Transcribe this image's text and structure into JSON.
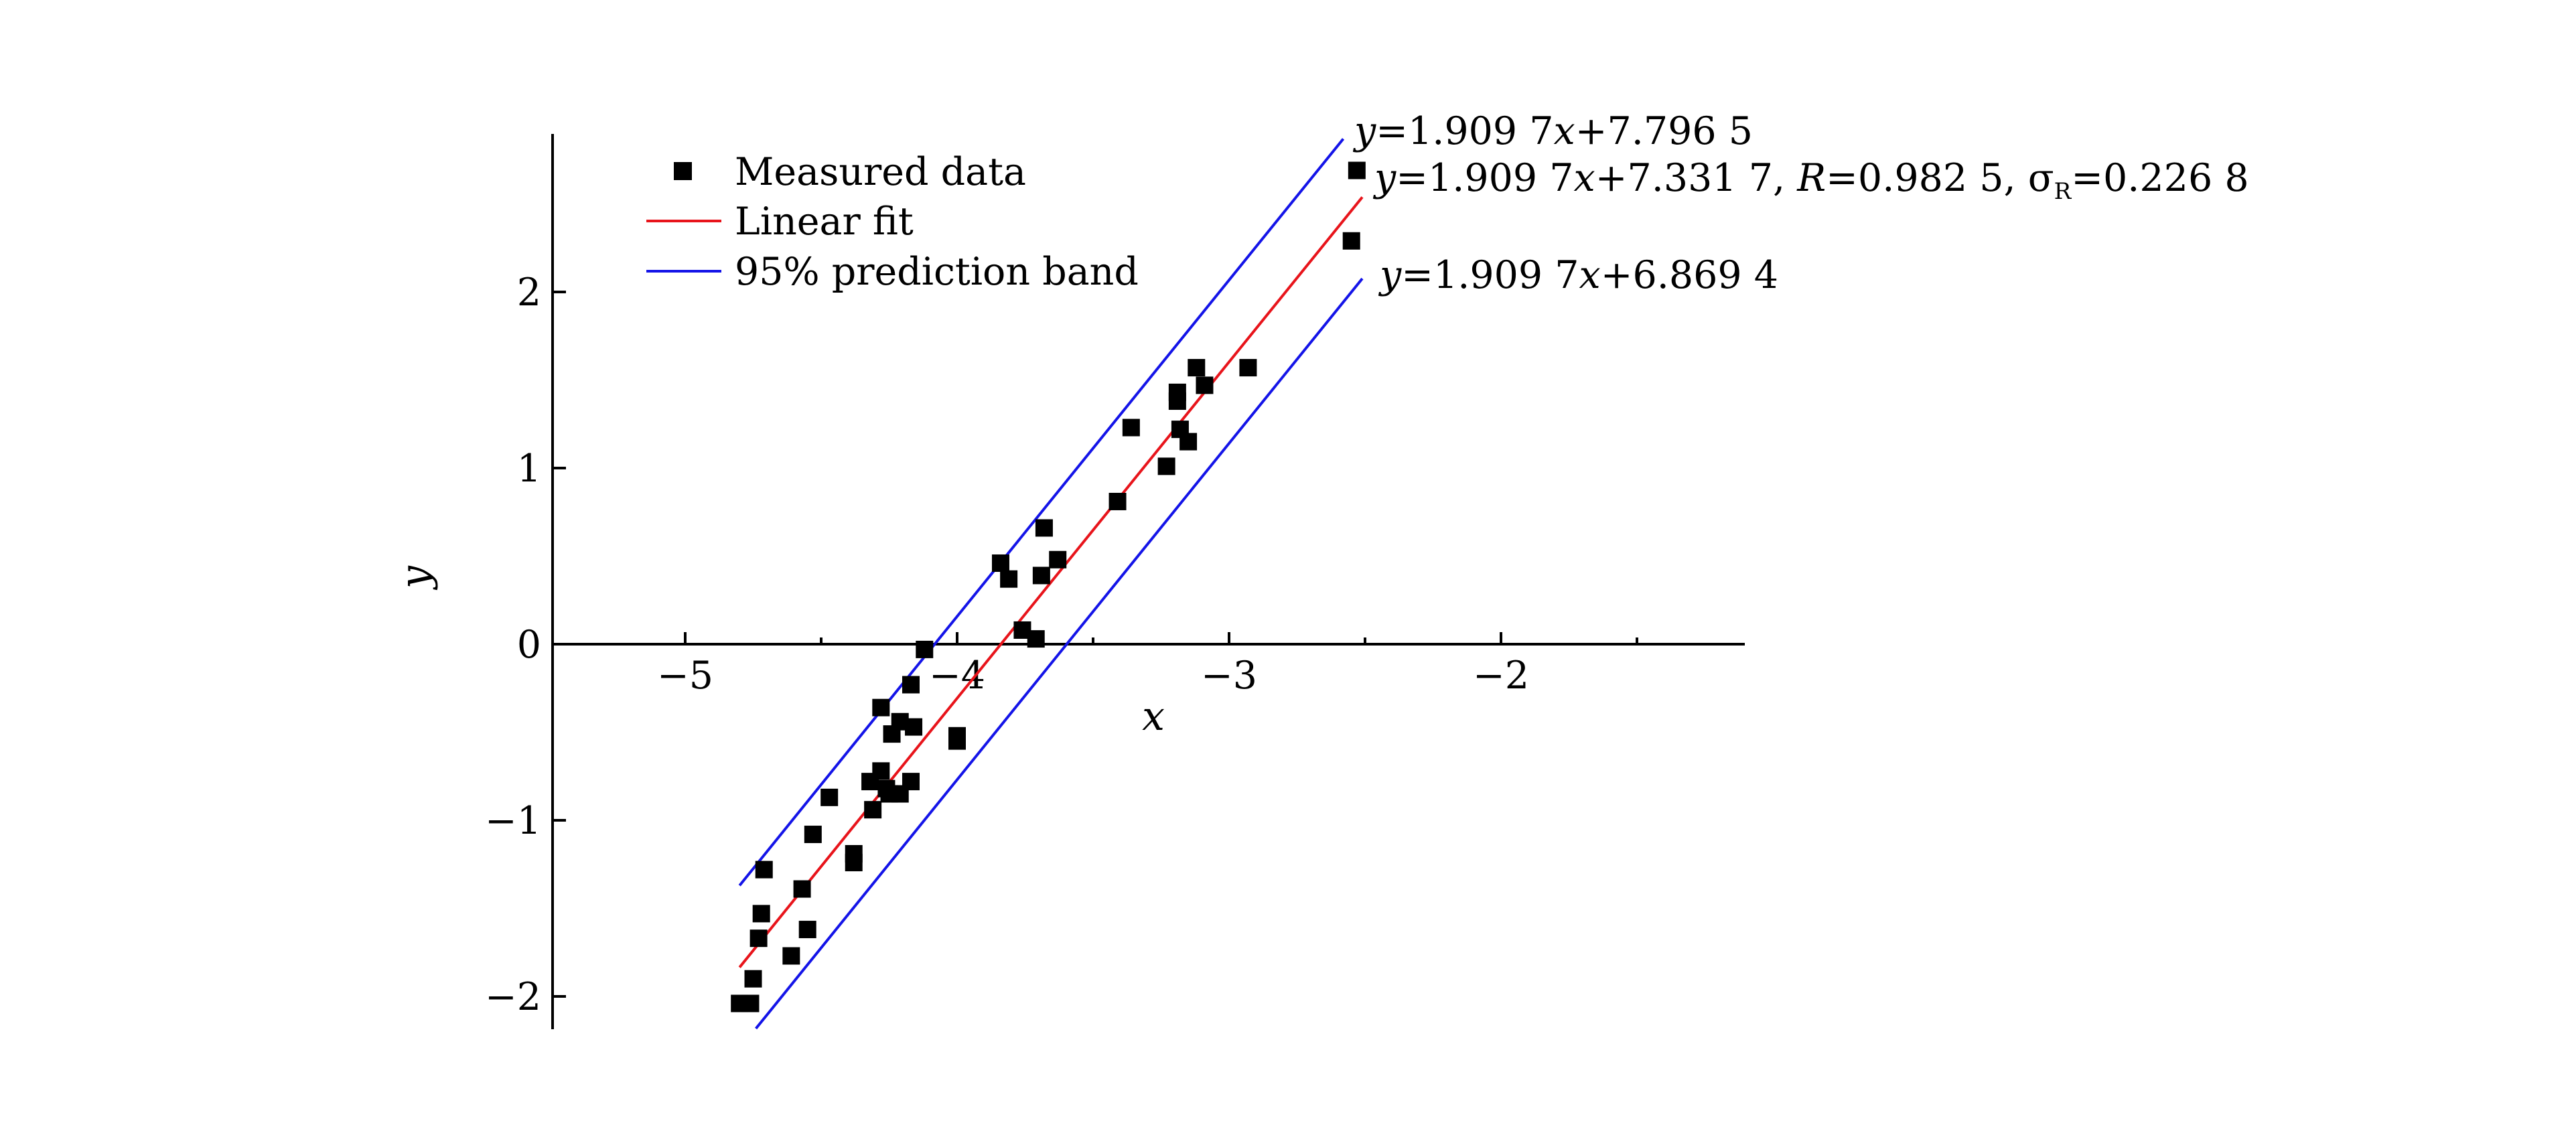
{
  "chart_data": {
    "type": "scatter",
    "xlabel": "x",
    "ylabel": "y",
    "xlim": [
      -5.5,
      -1.1
    ],
    "ylim": [
      -2.17,
      2.9
    ],
    "x_ticks": [
      -5,
      -4,
      -3,
      -2
    ],
    "x_tick_labels": [
      "−5",
      "−4",
      "−3",
      "−2"
    ],
    "y_ticks": [
      -2,
      -1,
      0,
      1,
      2
    ],
    "y_tick_labels": [
      "−2",
      "−1",
      "0",
      "1",
      "2"
    ],
    "grid": false,
    "legend_position": "top-left",
    "legend": [
      {
        "label": "Measured data",
        "kind": "marker",
        "color": "#000000"
      },
      {
        "label": "Linear fit",
        "kind": "line",
        "color": "#e8141b"
      },
      {
        "label": "95% prediction band",
        "kind": "line",
        "color": "#1414e8"
      }
    ],
    "series": [
      {
        "name": "Measured data",
        "kind": "scatter",
        "color": "#000000",
        "points": [
          [
            -4.8,
            -2.04
          ],
          [
            -4.76,
            -2.04
          ],
          [
            -4.75,
            -1.9
          ],
          [
            -4.73,
            -1.67
          ],
          [
            -4.72,
            -1.53
          ],
          [
            -4.71,
            -1.28
          ],
          [
            -4.61,
            -1.77
          ],
          [
            -4.57,
            -1.39
          ],
          [
            -4.55,
            -1.62
          ],
          [
            -4.53,
            -1.08
          ],
          [
            -4.47,
            -0.87
          ],
          [
            -4.38,
            -1.19
          ],
          [
            -4.38,
            -1.24
          ],
          [
            -4.32,
            -0.78
          ],
          [
            -4.31,
            -0.94
          ],
          [
            -4.28,
            -0.36
          ],
          [
            -4.28,
            -0.72
          ],
          [
            -4.26,
            -0.82
          ],
          [
            -4.25,
            -0.85
          ],
          [
            -4.24,
            -0.51
          ],
          [
            -4.21,
            -0.44
          ],
          [
            -4.21,
            -0.85
          ],
          [
            -4.17,
            -0.78
          ],
          [
            -4.17,
            -0.23
          ],
          [
            -4.16,
            -0.47
          ],
          [
            -4.12,
            -0.03
          ],
          [
            -4.0,
            -0.52
          ],
          [
            -4.0,
            -0.55
          ],
          [
            -3.84,
            0.46
          ],
          [
            -3.81,
            0.37
          ],
          [
            -3.76,
            0.08
          ],
          [
            -3.71,
            0.03
          ],
          [
            -3.69,
            0.39
          ],
          [
            -3.68,
            0.66
          ],
          [
            -3.63,
            0.48
          ],
          [
            -3.41,
            0.81
          ],
          [
            -3.36,
            1.23
          ],
          [
            -3.23,
            1.01
          ],
          [
            -3.19,
            1.43
          ],
          [
            -3.19,
            1.38
          ],
          [
            -3.18,
            1.22
          ],
          [
            -3.15,
            1.15
          ],
          [
            -3.12,
            1.57
          ],
          [
            -3.09,
            1.47
          ],
          [
            -2.93,
            1.57
          ],
          [
            -2.55,
            2.29
          ],
          [
            -2.53,
            2.69
          ]
        ]
      },
      {
        "name": "Linear fit",
        "kind": "line",
        "color": "#e8141b",
        "slope": 1.9097,
        "intercept": 7.3317,
        "x_range": [
          -4.8,
          -2.51
        ]
      },
      {
        "name": "95% prediction band upper",
        "kind": "line",
        "color": "#1414e8",
        "slope": 1.9097,
        "intercept": 7.7965,
        "x_range": [
          -4.8,
          -2.58
        ]
      },
      {
        "name": "95% prediction band lower",
        "kind": "line",
        "color": "#1414e8",
        "slope": 1.9097,
        "intercept": 6.8694,
        "x_range": [
          -4.74,
          -2.51
        ]
      }
    ],
    "annotations": {
      "upper": {
        "parts": [
          "y",
          "=1.909 7",
          "x",
          "+7.796 5"
        ]
      },
      "fit": {
        "parts": [
          "y",
          "=1.909 7",
          "x",
          "+7.331 7, ",
          "R",
          "=0.982 5, σ",
          "R",
          "=0.226 8"
        ]
      },
      "lower": {
        "parts": [
          "y",
          "=1.909 7",
          "x",
          "+6.869 4"
        ]
      }
    }
  }
}
